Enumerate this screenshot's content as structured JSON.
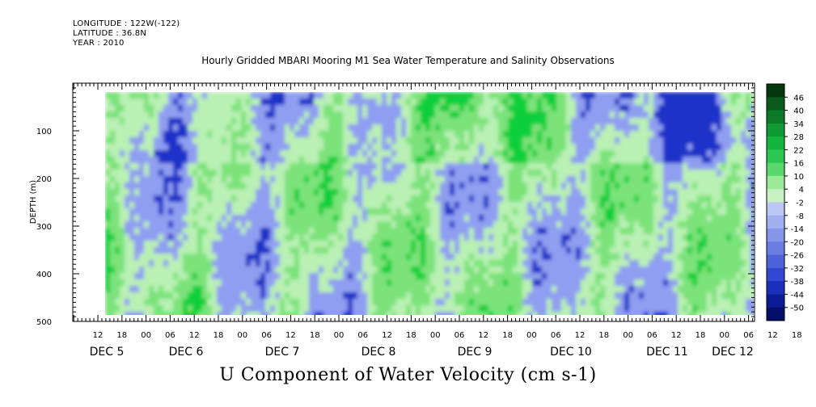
{
  "header": {
    "longitude": "LONGITUDE : 122W(-122)",
    "latitude": "LATITUDE : 36.8N",
    "year": "YEAR : 2010"
  },
  "chart_data": {
    "type": "heatmap",
    "title": "Hourly Gridded MBARI Mooring M1 Sea Water Temperature and Salinity Observations",
    "xlabel": "U Component of Water Velocity (cm s-1)",
    "ylabel": "DEPTH (m)",
    "y_ticks": [
      "100",
      "200",
      "300",
      "400",
      "500"
    ],
    "ylim": [
      0,
      500
    ],
    "y_reversed": true,
    "x_hour_ticks": [
      "12",
      "18",
      "00",
      "06",
      "12",
      "18",
      "00",
      "06",
      "12",
      "18",
      "00",
      "06",
      "12",
      "18",
      "00",
      "06",
      "12",
      "18",
      "00",
      "06",
      "12",
      "18",
      "00",
      "06",
      "12",
      "18",
      "00",
      "06",
      "12",
      "18",
      "00",
      "06"
    ],
    "x_day_labels": [
      "DEC 5",
      "DEC 6",
      "DEC 7",
      "DEC 8",
      "DEC 9",
      "DEC 10",
      "DEC 11",
      "DEC 12"
    ],
    "colorbar_labels": [
      "46",
      "40",
      "34",
      "28",
      "22",
      "16",
      "10",
      "4",
      "-2",
      "-8",
      "-14",
      "-20",
      "-26",
      "-32",
      "-38",
      "-44",
      "-50"
    ],
    "colorbar_range": [
      -50,
      50
    ],
    "colors": {
      "strong_negative": "#1a33c8",
      "weak_negative": "#8f9ef0",
      "near_zero": "#b9f0b4",
      "weak_positive": "#7ce27a",
      "strong_positive": "#0fcf3a"
    }
  }
}
